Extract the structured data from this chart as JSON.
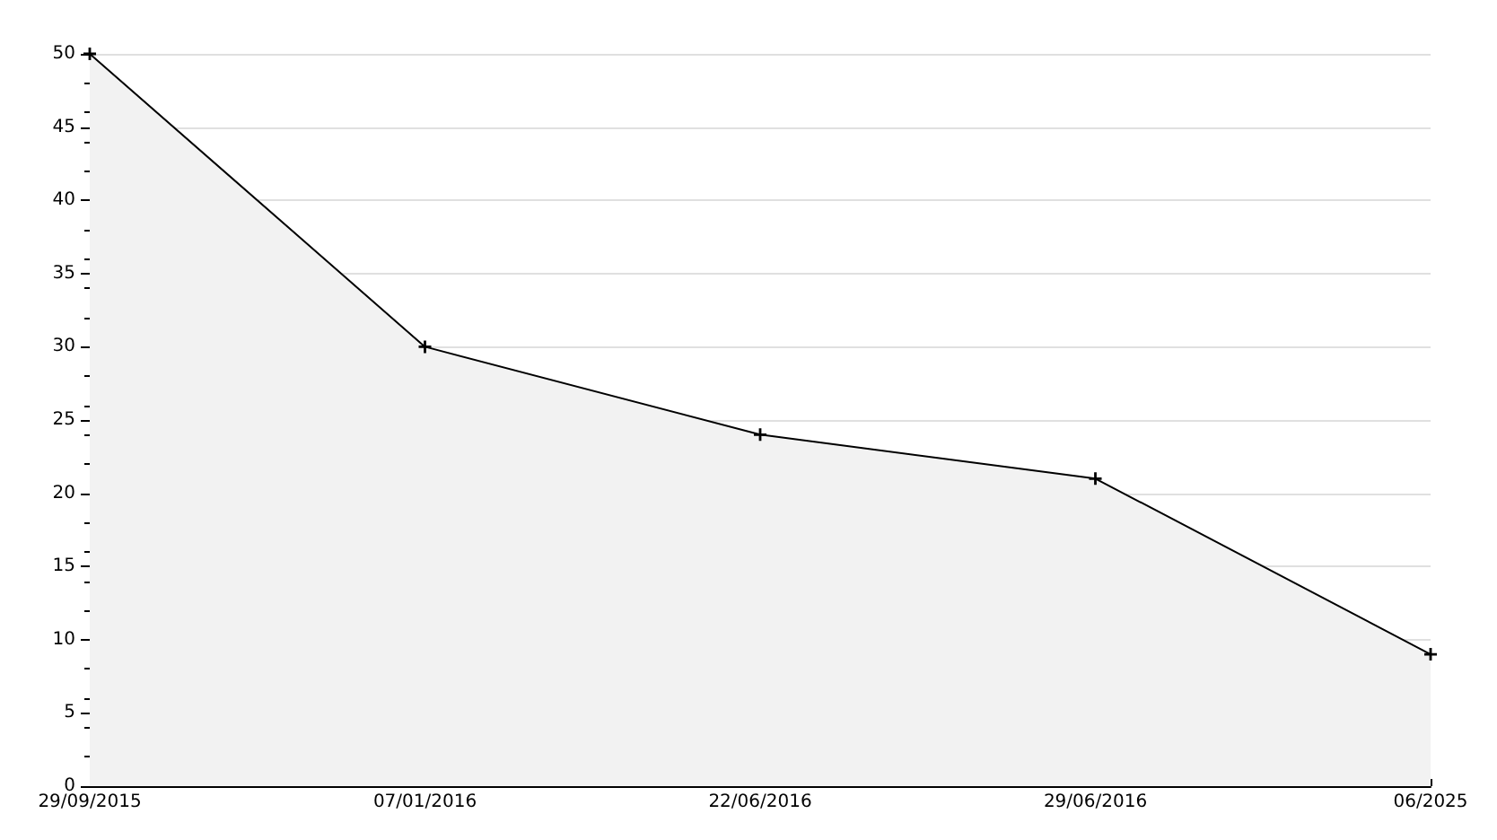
{
  "chart_data": {
    "type": "area",
    "categories": [
      "29/09/2015",
      "07/01/2016",
      "22/06/2016",
      "29/06/2016",
      "06/2025"
    ],
    "series": [
      {
        "color": "#000000",
        "values": [
          50,
          30,
          24,
          21,
          9
        ]
      }
    ],
    "ylim": [
      0,
      50
    ],
    "yticks": [
      0,
      5,
      10,
      15,
      20,
      25,
      30,
      35,
      40,
      45,
      50
    ],
    "grid": "y",
    "marker": "cross",
    "line_style": "solid"
  }
}
